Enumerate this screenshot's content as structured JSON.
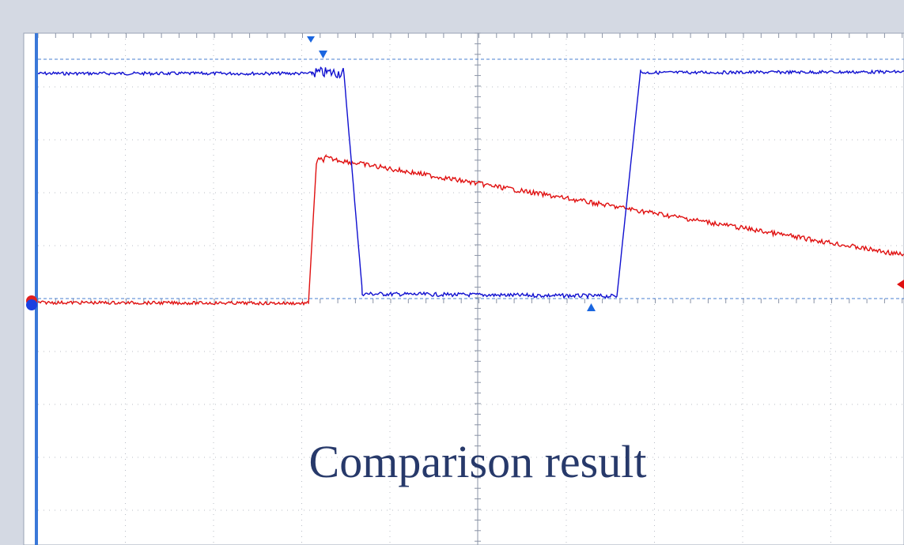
{
  "caption": "Comparison result"
}
